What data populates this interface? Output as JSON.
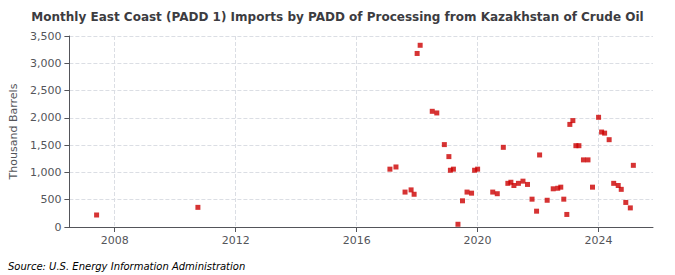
{
  "chart_data": {
    "type": "scatter",
    "title": "Monthly East Coast (PADD 1) Imports by PADD of Processing from Kazakhstan of Crude Oil",
    "ylabel": "Thousand Barrels",
    "annotations": [
      "Source: U.S. Energy Information Administration"
    ],
    "color": "#cc0000",
    "marker": "square",
    "grid": true,
    "xlim": [
      2006.5,
      2025.8
    ],
    "xticks": [
      2008,
      2012,
      2016,
      2020,
      2024
    ],
    "ylim": [
      0,
      3500
    ],
    "yticks": [
      0,
      500,
      {
        "value": 1000,
        "label": "1,000"
      },
      {
        "value": 1500,
        "label": "1,500"
      },
      {
        "value": 2000,
        "label": "2,000"
      },
      {
        "value": 2500,
        "label": "2,500"
      },
      {
        "value": 3000,
        "label": "3,000"
      },
      {
        "value": 3500,
        "label": "3,500"
      }
    ],
    "x": [
      2007.4,
      2010.75,
      2017.1,
      2017.3,
      2017.6,
      2017.8,
      2017.9,
      2018.0,
      2018.1,
      2018.5,
      2018.65,
      2018.9,
      2019.05,
      2019.1,
      2019.2,
      2019.35,
      2019.5,
      2019.65,
      2019.8,
      2019.9,
      2020.0,
      2020.5,
      2020.65,
      2020.85,
      2021.0,
      2021.1,
      2021.2,
      2021.35,
      2021.5,
      2021.65,
      2021.8,
      2021.95,
      2022.05,
      2022.3,
      2022.5,
      2022.65,
      2022.75,
      2022.85,
      2022.95,
      2023.05,
      2023.15,
      2023.25,
      2023.35,
      2023.5,
      2023.65,
      2023.8,
      2024.0,
      2024.1,
      2024.2,
      2024.35,
      2024.5,
      2024.65,
      2024.75,
      2024.9,
      2025.05,
      2025.15
    ],
    "values": [
      220,
      360,
      1060,
      1100,
      640,
      680,
      600,
      3180,
      3330,
      2120,
      2090,
      1510,
      1290,
      1040,
      1060,
      50,
      480,
      640,
      620,
      1040,
      1060,
      640,
      610,
      1460,
      800,
      820,
      760,
      800,
      840,
      780,
      510,
      290,
      1320,
      490,
      700,
      710,
      730,
      510,
      230,
      1880,
      1950,
      1490,
      1490,
      1230,
      1230,
      730,
      2010,
      1740,
      1720,
      1600,
      800,
      760,
      690,
      450,
      350,
      1130
    ]
  }
}
